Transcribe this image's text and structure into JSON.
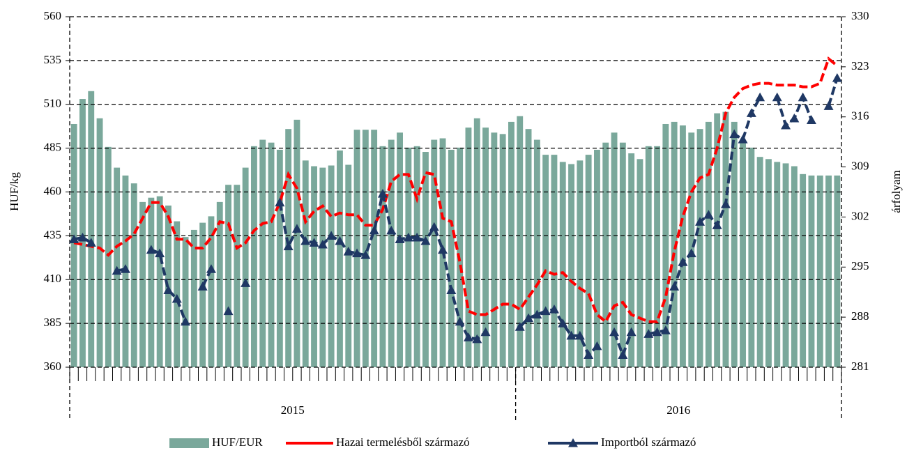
{
  "chart_data": {
    "type": "bar-line",
    "y_label": "HUF/kg",
    "y2_label": "árfolyam",
    "categories": [
      null,
      null,
      null,
      null,
      null,
      null,
      null,
      null,
      null,
      null,
      null,
      null,
      null,
      null,
      null,
      null,
      null,
      null,
      null,
      null,
      null,
      null,
      null,
      null,
      null,
      null,
      null,
      null,
      null,
      null,
      null,
      null,
      null,
      null,
      null,
      null,
      null,
      null,
      null,
      null,
      null,
      null,
      null,
      null,
      null,
      null,
      null,
      null,
      null,
      null,
      null,
      null,
      null,
      null,
      null,
      null,
      null,
      null,
      null,
      null,
      null,
      null,
      null,
      null,
      null,
      null,
      null,
      null,
      null,
      null,
      null,
      null,
      null,
      null,
      null,
      null,
      null,
      null,
      null,
      null,
      null,
      null,
      null,
      null,
      null,
      null,
      null,
      null,
      null,
      null
    ],
    "x_groups": [
      {
        "label": "2015",
        "count": 52
      },
      {
        "label": "2016",
        "count": 38
      }
    ],
    "ylim": [
      360,
      560
    ],
    "yticks": [
      360,
      385,
      410,
      435,
      460,
      485,
      510,
      535,
      560
    ],
    "y2lim": [
      281,
      330
    ],
    "y2ticks": [
      281,
      288,
      295,
      302,
      309,
      316,
      323,
      330
    ],
    "grid": true,
    "legend": "bottom",
    "series": [
      {
        "name": "HUF/EUR",
        "kind": "bar",
        "axis": "y2",
        "color": "#7aa89b",
        "values": [
          315.0,
          318.5,
          319.6,
          315.8,
          311.8,
          308.9,
          307.8,
          306.7,
          304.1,
          304.7,
          304.9,
          303.6,
          301.4,
          299.2,
          300.2,
          301.2,
          302.1,
          304.1,
          306.5,
          306.5,
          308.9,
          311.9,
          312.8,
          312.4,
          311.4,
          314.3,
          315.6,
          309.9,
          309.1,
          308.9,
          309.2,
          311.3,
          309.3,
          314.2,
          314.2,
          314.2,
          311.9,
          312.8,
          313.8,
          311.7,
          311.9,
          311.1,
          312.8,
          313.0,
          311.4,
          311.7,
          314.5,
          315.8,
          314.5,
          313.8,
          313.6,
          315.3,
          316.1,
          314.3,
          312.8,
          310.7,
          310.7,
          309.7,
          309.4,
          309.9,
          310.7,
          311.4,
          312.4,
          313.8,
          312.4,
          310.9,
          310.1,
          311.9,
          311.9,
          315.0,
          315.3,
          314.8,
          313.8,
          314.3,
          315.3,
          316.5,
          316.7,
          315.3,
          312.8,
          311.7,
          310.4,
          310.1,
          309.7,
          309.5,
          309.1,
          308.0,
          307.8,
          307.8,
          307.8,
          307.8
        ]
      },
      {
        "name": "Hazai termelésből származó",
        "kind": "line",
        "color": "#ff0000",
        "values": [
          431,
          430,
          429,
          428,
          424,
          429,
          432,
          436,
          445,
          454,
          454,
          446,
          433,
          433,
          428,
          428,
          434,
          443,
          442,
          428,
          431,
          438,
          442,
          443,
          454,
          470,
          462,
          443,
          449,
          452,
          446,
          448,
          447,
          447,
          441,
          441,
          450,
          466,
          470,
          470,
          456,
          471,
          470,
          445,
          443,
          420,
          392,
          390,
          390,
          393,
          396,
          396,
          393,
          400,
          407,
          415,
          413,
          414,
          409,
          405,
          402,
          390,
          386,
          395,
          397,
          390,
          388,
          386,
          386,
          400,
          426,
          446,
          460,
          468,
          470,
          485,
          505,
          514,
          519,
          521,
          522,
          522,
          521,
          521,
          521,
          520,
          520,
          522,
          536,
          532
        ]
      },
      {
        "name": "Importból származó",
        "kind": "line",
        "marker": "triangle",
        "color": "#1f3864",
        "values": [
          433,
          434,
          431,
          null,
          null,
          415,
          416,
          null,
          null,
          427,
          425,
          404,
          399,
          386,
          null,
          406,
          416,
          null,
          392,
          null,
          408,
          null,
          null,
          null,
          454,
          429,
          439,
          432,
          431,
          430,
          435,
          432,
          426,
          425,
          424,
          438,
          459,
          438,
          433,
          434,
          434,
          432,
          440,
          427,
          404,
          386,
          377,
          376,
          380,
          null,
          null,
          null,
          383,
          388,
          390,
          392,
          393,
          385,
          378,
          378,
          367,
          372,
          null,
          380,
          367,
          380,
          null,
          379,
          380,
          381,
          406,
          420,
          425,
          443,
          447,
          441,
          453,
          493,
          490,
          505,
          514,
          null,
          514,
          498,
          502,
          514,
          501,
          null,
          509,
          525
        ]
      }
    ]
  }
}
